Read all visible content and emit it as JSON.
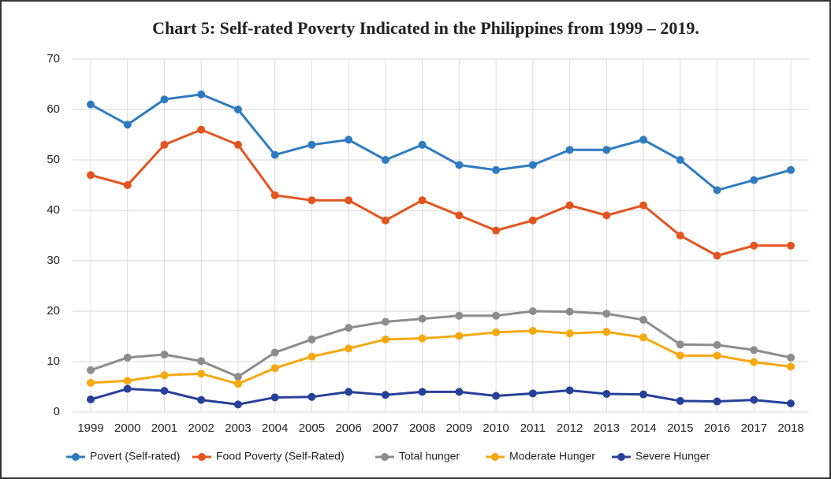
{
  "chart_data": {
    "type": "line",
    "title": "Chart 5: Self-rated Poverty Indicated in the Philippines from 1999 – 2019.",
    "categories": [
      "1999",
      "2000",
      "2001",
      "2002",
      "2003",
      "2004",
      "2005",
      "2006",
      "2007",
      "2008",
      "2009",
      "2010",
      "2011",
      "2012",
      "2013",
      "2014",
      "2015",
      "2016",
      "2017",
      "2018"
    ],
    "series": [
      {
        "name": "Povert (Self-rated)",
        "color": "#2f7bc1",
        "values": [
          61,
          57,
          62,
          63,
          60,
          51,
          53,
          54,
          50,
          53,
          49,
          48,
          49,
          52,
          52,
          54,
          50,
          44,
          46,
          48
        ]
      },
      {
        "name": "Food Poverty (Self-Rated)",
        "color": "#e4541f",
        "values": [
          47,
          45,
          53,
          56,
          53,
          43,
          42,
          42,
          38,
          42,
          39,
          36,
          38,
          41,
          39,
          41,
          35,
          31,
          33,
          33
        ]
      },
      {
        "name": "Total hunger",
        "color": "#8c8c8c",
        "values": [
          8.3,
          10.8,
          11.4,
          10.1,
          7,
          11.8,
          14.4,
          16.7,
          17.9,
          18.5,
          19.1,
          19.1,
          20,
          19.9,
          19.5,
          18.3,
          13.4,
          13.3,
          12.3,
          10.8
        ]
      },
      {
        "name": "Moderate Hunger",
        "color": "#f5a810",
        "values": [
          5.8,
          6.2,
          7.3,
          7.6,
          5.6,
          8.7,
          11,
          12.6,
          14.4,
          14.6,
          15.1,
          15.8,
          16.1,
          15.6,
          15.9,
          14.8,
          11.2,
          11.2,
          9.9,
          9
        ]
      },
      {
        "name": "Severe Hunger",
        "color": "#27409a",
        "values": [
          2.5,
          4.6,
          4.2,
          2.4,
          1.5,
          2.9,
          3,
          4,
          3.4,
          4,
          4,
          3.2,
          3.7,
          4.3,
          3.6,
          3.5,
          2.2,
          2.1,
          2.4,
          1.7
        ]
      }
    ],
    "ylim": [
      0,
      70
    ],
    "yticks": [
      0,
      10,
      20,
      30,
      40,
      50,
      60,
      70
    ],
    "grid": true,
    "legend": "bottom"
  }
}
